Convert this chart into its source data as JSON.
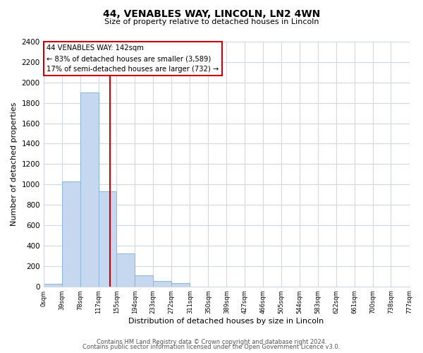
{
  "title": "44, VENABLES WAY, LINCOLN, LN2 4WN",
  "subtitle": "Size of property relative to detached houses in Lincoln",
  "xlabel": "Distribution of detached houses by size in Lincoln",
  "ylabel": "Number of detached properties",
  "bar_edges": [
    0,
    39,
    78,
    117,
    155,
    194,
    233,
    272,
    311,
    350,
    389,
    427,
    466,
    505,
    544,
    583,
    622,
    661,
    700,
    738,
    777
  ],
  "bar_heights": [
    25,
    1030,
    1900,
    930,
    320,
    105,
    50,
    35,
    0,
    0,
    0,
    0,
    0,
    0,
    0,
    0,
    0,
    0,
    0,
    0
  ],
  "bar_color": "#c5d8f0",
  "bar_edge_color": "#8ab4d8",
  "property_line_x": 142,
  "property_line_color": "#cc0000",
  "annotation_title": "44 VENABLES WAY: 142sqm",
  "annotation_line1": "← 83% of detached houses are smaller (3,589)",
  "annotation_line2": "17% of semi-detached houses are larger (732) →",
  "annotation_box_color": "#ffffff",
  "annotation_box_edge_color": "#cc0000",
  "ylim": [
    0,
    2400
  ],
  "yticks": [
    0,
    200,
    400,
    600,
    800,
    1000,
    1200,
    1400,
    1600,
    1800,
    2000,
    2200,
    2400
  ],
  "xtick_labels": [
    "0sqm",
    "39sqm",
    "78sqm",
    "117sqm",
    "155sqm",
    "194sqm",
    "233sqm",
    "272sqm",
    "311sqm",
    "350sqm",
    "389sqm",
    "427sqm",
    "466sqm",
    "505sqm",
    "544sqm",
    "583sqm",
    "622sqm",
    "661sqm",
    "700sqm",
    "738sqm",
    "777sqm"
  ],
  "footer_line1": "Contains HM Land Registry data © Crown copyright and database right 2024.",
  "footer_line2": "Contains public sector information licensed under the Open Government Licence v3.0.",
  "grid_color": "#d0d8e4",
  "background_color": "#ffffff"
}
